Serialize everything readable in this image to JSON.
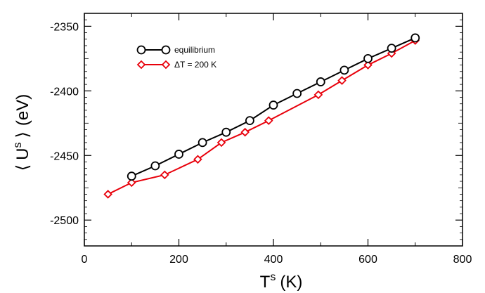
{
  "chart_data": {
    "type": "line",
    "title": "",
    "xlabel": {
      "main": "T",
      "superscript": "s",
      "unit": "(K)"
    },
    "ylabel": {
      "open": "⟨",
      "main": "U",
      "superscript": "s",
      "close": "⟩",
      "unit": "(eV)"
    },
    "xlim": [
      0,
      800
    ],
    "ylim": [
      -2520,
      -2340
    ],
    "xticks": [
      0,
      200,
      400,
      600,
      800
    ],
    "xtick_labels": [
      "0",
      "200",
      "400",
      "600",
      "800"
    ],
    "yticks": [
      -2500,
      -2450,
      -2400,
      -2350
    ],
    "ytick_labels": [
      "-2500",
      "-2450",
      "-2400",
      "-2350"
    ],
    "grid": false,
    "legend_position": "top-left",
    "series": [
      {
        "name": "equilibrium",
        "color": "#000000",
        "marker": "circle",
        "x": [
          100,
          150,
          200,
          250,
          300,
          350,
          400,
          450,
          500,
          550,
          600,
          650,
          700
        ],
        "y": [
          -2466,
          -2458,
          -2449,
          -2440,
          -2432,
          -2423,
          -2411,
          -2402,
          -2393,
          -2384,
          -2375,
          -2367,
          -2359
        ]
      },
      {
        "name": "ΔT = 200 K",
        "color": "#e8000b",
        "marker": "diamond",
        "x": [
          50,
          100,
          170,
          240,
          290,
          340,
          390,
          495,
          545,
          600,
          650,
          700
        ],
        "y": [
          -2480,
          -2471,
          -2465,
          -2453,
          -2440,
          -2432,
          -2423,
          -2403,
          -2392,
          -2380,
          -2371,
          -2361
        ]
      }
    ]
  }
}
